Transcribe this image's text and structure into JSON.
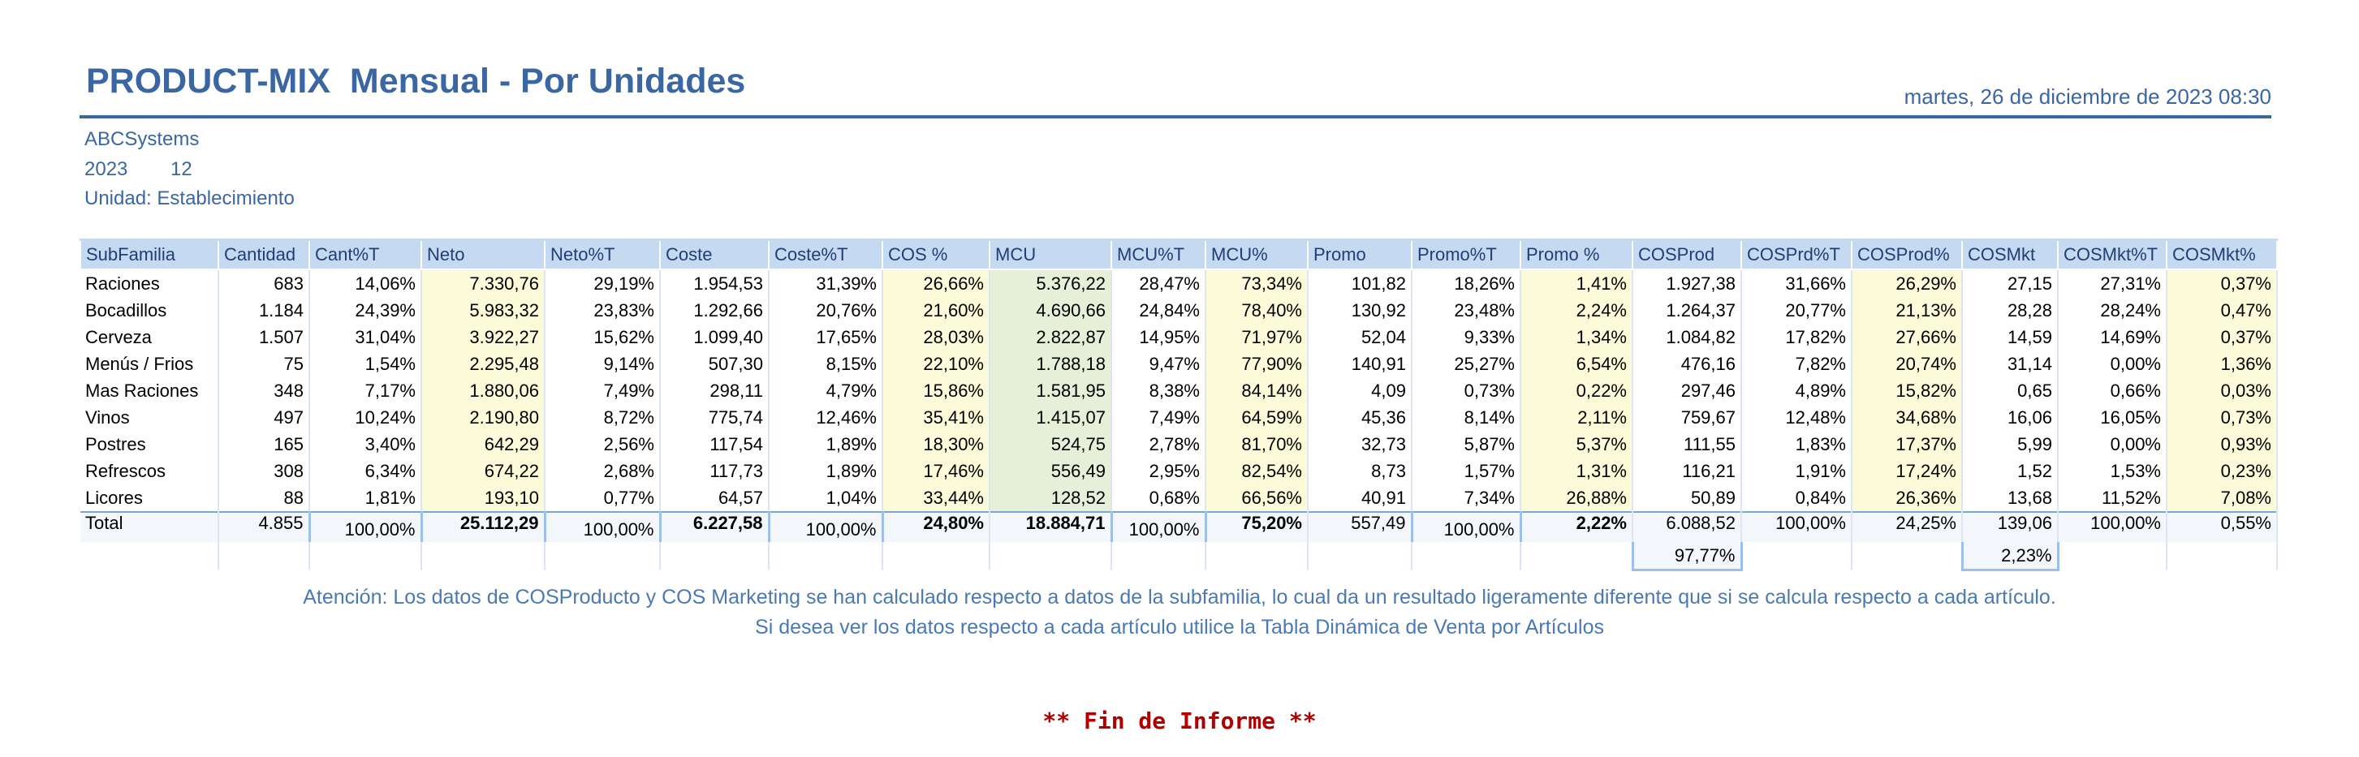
{
  "header": {
    "title": "PRODUCT-MIX  Mensual - Por Unidades",
    "date": "martes, 26 de diciembre de 2023 08:30"
  },
  "meta": {
    "company": "ABCSystems",
    "year": "2023",
    "month": "12",
    "unit": "Unidad: Establecimiento"
  },
  "table": {
    "columns": [
      "SubFamilia",
      "Cantidad",
      "Cant%T",
      "Neto",
      "Neto%T",
      "Coste",
      "Coste%T",
      "COS %",
      "MCU",
      "MCU%T",
      "MCU%",
      "Promo",
      "Promo%T",
      "Promo %",
      "COSProd",
      "COSPrd%T",
      "COSProd%",
      "COSMkt",
      "COSMkt%T",
      "COSMkt%"
    ],
    "rows": [
      [
        "Raciones",
        "683",
        "14,06%",
        "7.330,76",
        "29,19%",
        "1.954,53",
        "31,39%",
        "26,66%",
        "5.376,22",
        "28,47%",
        "73,34%",
        "101,82",
        "18,26%",
        "1,41%",
        "1.927,38",
        "31,66%",
        "26,29%",
        "27,15",
        "27,31%",
        "0,37%"
      ],
      [
        "Bocadillos",
        "1.184",
        "24,39%",
        "5.983,32",
        "23,83%",
        "1.292,66",
        "20,76%",
        "21,60%",
        "4.690,66",
        "24,84%",
        "78,40%",
        "130,92",
        "23,48%",
        "2,24%",
        "1.264,37",
        "20,77%",
        "21,13%",
        "28,28",
        "28,24%",
        "0,47%"
      ],
      [
        "Cerveza",
        "1.507",
        "31,04%",
        "3.922,27",
        "15,62%",
        "1.099,40",
        "17,65%",
        "28,03%",
        "2.822,87",
        "14,95%",
        "71,97%",
        "52,04",
        "9,33%",
        "1,34%",
        "1.084,82",
        "17,82%",
        "27,66%",
        "14,59",
        "14,69%",
        "0,37%"
      ],
      [
        "Menús / Frios",
        "75",
        "1,54%",
        "2.295,48",
        "9,14%",
        "507,30",
        "8,15%",
        "22,10%",
        "1.788,18",
        "9,47%",
        "77,90%",
        "140,91",
        "25,27%",
        "6,54%",
        "476,16",
        "7,82%",
        "20,74%",
        "31,14",
        "0,00%",
        "1,36%"
      ],
      [
        "Mas Raciones",
        "348",
        "7,17%",
        "1.880,06",
        "7,49%",
        "298,11",
        "4,79%",
        "15,86%",
        "1.581,95",
        "8,38%",
        "84,14%",
        "4,09",
        "0,73%",
        "0,22%",
        "297,46",
        "4,89%",
        "15,82%",
        "0,65",
        "0,66%",
        "0,03%"
      ],
      [
        "Vinos",
        "497",
        "10,24%",
        "2.190,80",
        "8,72%",
        "775,74",
        "12,46%",
        "35,41%",
        "1.415,07",
        "7,49%",
        "64,59%",
        "45,36",
        "8,14%",
        "2,11%",
        "759,67",
        "12,48%",
        "34,68%",
        "16,06",
        "16,05%",
        "0,73%"
      ],
      [
        "Postres",
        "165",
        "3,40%",
        "642,29",
        "2,56%",
        "117,54",
        "1,89%",
        "18,30%",
        "524,75",
        "2,78%",
        "81,70%",
        "32,73",
        "5,87%",
        "5,37%",
        "111,55",
        "1,83%",
        "17,37%",
        "5,99",
        "0,00%",
        "0,93%"
      ],
      [
        "Refrescos",
        "308",
        "6,34%",
        "674,22",
        "2,68%",
        "117,73",
        "1,89%",
        "17,46%",
        "556,49",
        "2,95%",
        "82,54%",
        "8,73",
        "1,57%",
        "1,31%",
        "116,21",
        "1,91%",
        "17,24%",
        "1,52",
        "1,53%",
        "0,23%"
      ],
      [
        "Licores",
        "88",
        "1,81%",
        "193,10",
        "0,77%",
        "64,57",
        "1,04%",
        "33,44%",
        "128,52",
        "0,68%",
        "66,56%",
        "40,91",
        "7,34%",
        "26,88%",
        "50,89",
        "0,84%",
        "26,36%",
        "13,68",
        "11,52%",
        "7,08%"
      ]
    ],
    "total": [
      "Total",
      "4.855",
      "100,00%",
      "25.112,29",
      "100,00%",
      "6.227,58",
      "100,00%",
      "24,80%",
      "18.884,71",
      "100,00%",
      "75,20%",
      "557,49",
      "100,00%",
      "2,22%",
      "6.088,52",
      "100,00%",
      "24,25%",
      "139,06",
      "100,00%",
      "0,55%"
    ],
    "extra": {
      "cosprod_pct": "97,77%",
      "cosmkt_pct": "2,23%"
    }
  },
  "notes": {
    "line1": "Atención: Los datos de COSProducto y COS Marketing se han calculado respecto a datos de la subfamilia, lo cual da un resultado ligeramente diferente que si se calcula respecto a cada artículo.",
    "line2": "Si desea ver los datos respecto a cada artículo utilice la Tabla Dinámica de Venta por Artículos"
  },
  "footer": {
    "end": "** Fin de Informe **"
  },
  "colors": {
    "accent": "#3a67a3",
    "header_bg": "#c5d9f1",
    "yellow_cell": "#fbfbd9",
    "green_cell": "#e6f0d9",
    "end_text": "#b00000"
  }
}
